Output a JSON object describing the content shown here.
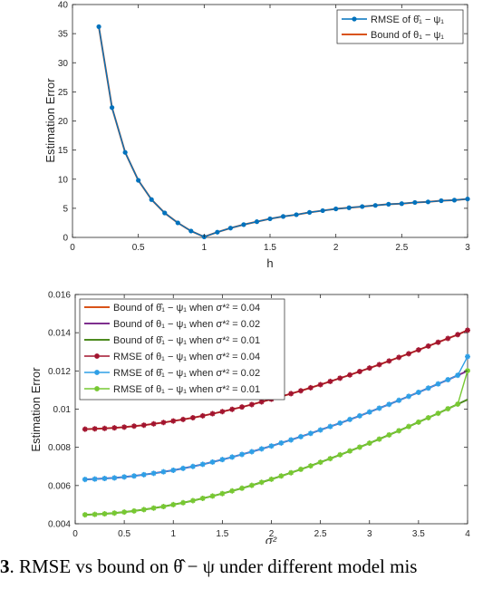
{
  "chart_data": [
    {
      "type": "line",
      "title": "",
      "xlabel": "h",
      "ylabel": "Estimation Error",
      "xlim": [
        0,
        3
      ],
      "ylim": [
        0,
        40
      ],
      "xticks": [
        0,
        0.5,
        1,
        1.5,
        2,
        2.5,
        3
      ],
      "xtick_labels": [
        "0",
        "0.5",
        "1",
        "1.5",
        "2",
        "2.5",
        "3"
      ],
      "yticks": [
        0,
        5,
        10,
        15,
        20,
        25,
        30,
        35,
        40
      ],
      "ytick_labels": [
        "0",
        "5",
        "10",
        "15",
        "20",
        "25",
        "30",
        "35",
        "40"
      ],
      "grid": false,
      "legend_position": "top-right",
      "x": [
        0.2,
        0.3,
        0.4,
        0.5,
        0.6,
        0.7,
        0.8,
        0.9,
        1.0,
        1.1,
        1.2,
        1.3,
        1.4,
        1.5,
        1.6,
        1.7,
        1.8,
        1.9,
        2.0,
        2.1,
        2.2,
        2.3,
        2.4,
        2.5,
        2.6,
        2.7,
        2.8,
        2.9,
        3.0
      ],
      "series": [
        {
          "name": "RMSE of θ̂₁ − ψ₁",
          "color": "#0072BD",
          "marker": "circle",
          "values": [
            36.2,
            22.3,
            14.6,
            9.8,
            6.5,
            4.2,
            2.5,
            1.1,
            0.1,
            0.9,
            1.6,
            2.2,
            2.7,
            3.2,
            3.6,
            3.9,
            4.3,
            4.6,
            4.9,
            5.1,
            5.3,
            5.5,
            5.7,
            5.8,
            6.0,
            6.1,
            6.3,
            6.4,
            6.6
          ]
        },
        {
          "name": "Bound of θ₁ − ψ₁",
          "color": "#D95319",
          "marker": "none",
          "values": [
            36.2,
            22.3,
            14.6,
            9.8,
            6.5,
            4.2,
            2.5,
            1.1,
            0.1,
            0.9,
            1.6,
            2.2,
            2.7,
            3.2,
            3.6,
            3.9,
            4.3,
            4.6,
            4.9,
            5.1,
            5.3,
            5.5,
            5.7,
            5.8,
            6.0,
            6.1,
            6.3,
            6.4,
            6.6
          ]
        }
      ]
    },
    {
      "type": "line",
      "title": "",
      "xlabel": "σ²",
      "ylabel": "Estimation Error",
      "xlim": [
        0,
        4
      ],
      "ylim": [
        0.004,
        0.016
      ],
      "xticks": [
        0,
        0.5,
        1,
        1.5,
        2,
        2.5,
        3,
        3.5,
        4
      ],
      "xtick_labels": [
        "0",
        "0.5",
        "1",
        "1.5",
        "2",
        "2.5",
        "3",
        "3.5",
        "4"
      ],
      "yticks": [
        0.004,
        0.006,
        0.008,
        0.01,
        0.012,
        0.014,
        0.016
      ],
      "ytick_labels": [
        "0.004",
        "0.006",
        "0.008",
        "0.01",
        "0.012",
        "0.014",
        "0.016"
      ],
      "grid": false,
      "legend_position": "top-left",
      "x": [
        0.1,
        0.2,
        0.3,
        0.4,
        0.5,
        0.6,
        0.7,
        0.8,
        0.9,
        1.0,
        1.1,
        1.2,
        1.3,
        1.4,
        1.5,
        1.6,
        1.7,
        1.8,
        1.9,
        2.0,
        2.1,
        2.2,
        2.3,
        2.4,
        2.5,
        2.6,
        2.7,
        2.8,
        2.9,
        3.0,
        3.1,
        3.2,
        3.3,
        3.4,
        3.5,
        3.6,
        3.7,
        3.8,
        3.9,
        4.0
      ],
      "series": [
        {
          "name": "Bound of θ̂₁ − ψ₁ when σ*² = 0.04",
          "color": "#D95319",
          "marker": "none",
          "values": [
            0.00895,
            0.00897,
            0.00899,
            0.00902,
            0.00906,
            0.00911,
            0.00916,
            0.00923,
            0.0093,
            0.00938,
            0.00946,
            0.00955,
            0.00965,
            0.00976,
            0.00987,
            0.00999,
            0.01011,
            0.01024,
            0.01038,
            0.01052,
            0.01066,
            0.01081,
            0.01096,
            0.01112,
            0.01128,
            0.01145,
            0.01162,
            0.01179,
            0.01197,
            0.01215,
            0.01233,
            0.01252,
            0.01271,
            0.0129,
            0.0131,
            0.0133,
            0.0135,
            0.0137,
            0.0139,
            0.01413
          ]
        },
        {
          "name": "Bound of θ₁ − ψ₁ when σ*² = 0.02",
          "color": "#7E2F8E",
          "marker": "none",
          "values": [
            0.00632,
            0.00634,
            0.00637,
            0.0064,
            0.00645,
            0.0065,
            0.00657,
            0.00664,
            0.00672,
            0.0068,
            0.0069,
            0.007,
            0.00711,
            0.00723,
            0.00736,
            0.00749,
            0.00763,
            0.00777,
            0.00792,
            0.00807,
            0.00823,
            0.00839,
            0.00856,
            0.00873,
            0.00891,
            0.00909,
            0.00927,
            0.00946,
            0.00965,
            0.00985,
            0.01005,
            0.01025,
            0.01046,
            0.01067,
            0.01088,
            0.0111,
            0.01132,
            0.01154,
            0.01177,
            0.012
          ]
        },
        {
          "name": "Bound of θ̂₁ − ψ₁ when σ*² = 0.01",
          "color": "#4D8A1F",
          "marker": "none",
          "values": [
            0.00447,
            0.00449,
            0.00452,
            0.00456,
            0.00461,
            0.00467,
            0.00474,
            0.00482,
            0.0049,
            0.005,
            0.0051,
            0.00521,
            0.00533,
            0.00545,
            0.00558,
            0.00572,
            0.00586,
            0.00601,
            0.00617,
            0.00633,
            0.0065,
            0.00667,
            0.00685,
            0.00703,
            0.00722,
            0.00741,
            0.00761,
            0.00781,
            0.00801,
            0.00822,
            0.00843,
            0.00865,
            0.00887,
            0.00909,
            0.00932,
            0.00955,
            0.00978,
            0.01002,
            0.01026,
            0.0105
          ]
        },
        {
          "name": "RMSE of θ₁ − ψ₁ when σ*² = 0.04",
          "color": "#A2142F",
          "marker": "star",
          "values": [
            0.00895,
            0.00897,
            0.00899,
            0.00902,
            0.00906,
            0.00911,
            0.00916,
            0.00923,
            0.0093,
            0.00938,
            0.00946,
            0.00955,
            0.00965,
            0.00976,
            0.00987,
            0.00999,
            0.01011,
            0.01024,
            0.01038,
            0.01052,
            0.01066,
            0.01081,
            0.01096,
            0.01112,
            0.01128,
            0.01145,
            0.01162,
            0.01179,
            0.01197,
            0.01215,
            0.01233,
            0.01252,
            0.01271,
            0.0129,
            0.0131,
            0.0133,
            0.0135,
            0.0137,
            0.0139,
            0.01413
          ]
        },
        {
          "name": "RMSE of θ̂₁ − ψ₁ when σ*² = 0.02",
          "color": "#2E9FE6",
          "marker": "star",
          "values": [
            0.00632,
            0.00634,
            0.00637,
            0.0064,
            0.00645,
            0.0065,
            0.00657,
            0.00664,
            0.00672,
            0.0068,
            0.0069,
            0.007,
            0.00711,
            0.00723,
            0.00736,
            0.00749,
            0.00763,
            0.00777,
            0.00792,
            0.00807,
            0.00823,
            0.00839,
            0.00856,
            0.00873,
            0.00891,
            0.00909,
            0.00927,
            0.00946,
            0.00965,
            0.00985,
            0.01005,
            0.01025,
            0.01046,
            0.01067,
            0.01088,
            0.0111,
            0.01132,
            0.01154,
            0.01177,
            0.01275
          ]
        },
        {
          "name": "RMSE of θ₁ − ψ₁ when σ*² = 0.01",
          "color": "#77C832",
          "marker": "star",
          "values": [
            0.00447,
            0.00449,
            0.00452,
            0.00456,
            0.00461,
            0.00467,
            0.00474,
            0.00482,
            0.0049,
            0.005,
            0.0051,
            0.00521,
            0.00533,
            0.00545,
            0.00558,
            0.00572,
            0.00586,
            0.00601,
            0.00617,
            0.00633,
            0.0065,
            0.00667,
            0.00685,
            0.00703,
            0.00722,
            0.00741,
            0.00761,
            0.00781,
            0.00801,
            0.00822,
            0.00843,
            0.00865,
            0.00887,
            0.00909,
            0.00932,
            0.00955,
            0.00978,
            0.01002,
            0.01026,
            0.01201
          ]
        }
      ]
    }
  ],
  "caption": {
    "label": "3",
    "text": ". RMSE vs bound on θ̂ − ψ under different model mis"
  }
}
